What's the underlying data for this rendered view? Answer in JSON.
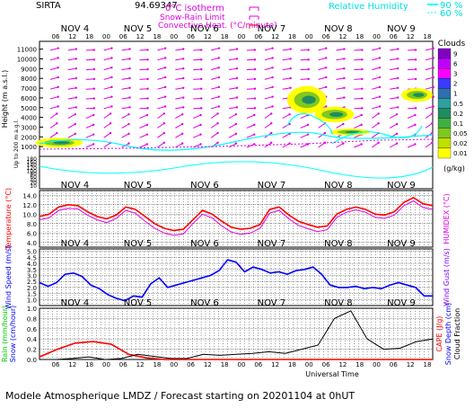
{
  "header": {
    "station": "SIRTA",
    "coords": "94.69347",
    "legend_isotherm": "0°C isotherm",
    "legend_snow_rain": "Snow-Rain Limit",
    "legend_convective": "Convective Heat. (°C/minute)",
    "legend_rh": "Relative Humidity",
    "rh_levels": [
      "90 %",
      "60 %"
    ],
    "footer": "Modele Atmospherique LMDZ / Forecast starting on 20201104 at 0hUT"
  },
  "colors": {
    "magenta": "#e000e0",
    "cyan": "#00ffff",
    "red": "#ff0000",
    "blue": "#0000ff",
    "green": "#00cc00",
    "lime": "#00ff00",
    "orange": "#ff6600",
    "grid": "#000000"
  },
  "chart_data": [
    {
      "type": "heatmap",
      "panel": "clouds",
      "ylabel": "Height (m a.s.l.)",
      "ylabel2": "Up to 200 m a.g.l.",
      "yticks_upper": [
        1000,
        2000,
        3000,
        4000,
        5000,
        6000,
        7000,
        8000,
        9000,
        10000,
        11000
      ],
      "yticks_lower": [
        10,
        20,
        40,
        60,
        80,
        100,
        120,
        140,
        160,
        180
      ],
      "days": [
        "NOV 4",
        "NOV 5",
        "NOV 6",
        "NOV 7",
        "NOV 8",
        "NOV 9"
      ],
      "hour_ticks": [
        "06",
        "12",
        "18",
        "00",
        "06",
        "12",
        "18",
        "00",
        "06",
        "12",
        "18",
        "00",
        "06",
        "12",
        "18",
        "00",
        "06",
        "12",
        "18",
        "00",
        "06",
        "12",
        "18"
      ],
      "colorbar_title": "Clouds",
      "colorbar_unit": "(g/kg)",
      "colorbar_ticks": [
        "9",
        "6",
        "3",
        "2",
        "1",
        "0.5",
        "0.2",
        "0.1",
        "0.05",
        "0.02",
        "0.01"
      ],
      "colorbar_colors": [
        "#8000c0",
        "#c000ff",
        "#ff00ff",
        "#3b3bff",
        "#2f6fb0",
        "#2fa0a0",
        "#208c60",
        "#40b040",
        "#80c820",
        "#c0e000",
        "#ffff00"
      ],
      "cloud_blobs": [
        {
          "t": 0.05,
          "z": 1400,
          "dt": 0.06,
          "dz": 500,
          "level": 0.5
        },
        {
          "t": 0.68,
          "z": 5800,
          "dt": 0.05,
          "dz": 1400,
          "level": 1
        },
        {
          "t": 0.75,
          "z": 4300,
          "dt": 0.05,
          "dz": 800,
          "level": 1
        },
        {
          "t": 0.79,
          "z": 2500,
          "dt": 0.05,
          "dz": 350,
          "level": 0.5
        },
        {
          "t": 0.96,
          "z": 6300,
          "dt": 0.04,
          "dz": 700,
          "level": 0.5
        }
      ]
    },
    {
      "type": "line",
      "panel": "temperature",
      "ylabel": "Temperature (°C)",
      "ylabel2": "HUMIDEX (°C)",
      "yticks": [
        4.0,
        6.0,
        8.0,
        10.0,
        12.0,
        14.0
      ],
      "ylim": [
        3,
        15
      ],
      "series": [
        {
          "name": "Temperature",
          "values": [
            9.5,
            10,
            11.5,
            12,
            11.8,
            10.5,
            9.5,
            9,
            9.8,
            11.5,
            11,
            9.5,
            8,
            7,
            6.5,
            6.8,
            8.8,
            10.8,
            10,
            8.5,
            7.2,
            6.8,
            7,
            7.8,
            11,
            11.5,
            9.8,
            8.5,
            7.8,
            7.2,
            7.5,
            10,
            11,
            11.5,
            11,
            10,
            9.8,
            10.5,
            12.5,
            13.5,
            12.2,
            11.8
          ]
        },
        {
          "name": "Humidex",
          "values": [
            8.8,
            9.2,
            10.8,
            11.2,
            11.1,
            9.8,
            8.8,
            8.2,
            9.1,
            10.8,
            10.2,
            8.5,
            7,
            6,
            5.5,
            5.8,
            8,
            10,
            9.2,
            7.5,
            6.2,
            5.7,
            6,
            7,
            10.2,
            10.8,
            9,
            7.6,
            6.9,
            6.3,
            6.7,
            9.3,
            10.4,
            10.9,
            10.4,
            9.3,
            9.1,
            9.8,
            11.8,
            12.8,
            11.4,
            11
          ]
        }
      ]
    },
    {
      "type": "line",
      "panel": "wind",
      "ylabel": "Wind Speed (m/s)",
      "ylabel2": "Wind Gust (m/s)",
      "yticks": [
        1.0,
        1.5,
        2.0,
        2.5,
        3.0,
        3.5,
        4.0,
        4.5,
        5.0
      ],
      "ylim": [
        0.5,
        5.2
      ],
      "series": [
        {
          "name": "Wind Speed",
          "values": [
            2.4,
            2.1,
            2.4,
            3.1,
            3.2,
            2.9,
            2.2,
            1.9,
            1.4,
            1.1,
            0.9,
            1.3,
            1.2,
            2.3,
            2.8,
            2.0,
            2.2,
            2.4,
            2.6,
            2.8,
            3.0,
            3.4,
            4.3,
            4.1,
            3.3,
            3.7,
            3.5,
            3.2,
            3.3,
            3.1,
            3.4,
            3.5,
            3.7,
            3.1,
            2.2,
            2.0,
            2.0,
            2.1,
            1.9,
            2.0,
            1.9,
            2.2,
            2.4,
            2.2,
            2.0,
            1.3,
            1.3
          ]
        }
      ]
    },
    {
      "type": "line",
      "panel": "rain",
      "ylabel": "Rain (mm/hour)",
      "ylabel2": "Snow (cm/hour)",
      "ylabel3": "CAPE (J/g)",
      "ylabel4": "Snow Depth (cm)",
      "ylabel5": "Cloud Fraction",
      "xlabel": "Universal Time",
      "yticks": [
        0.0,
        0.2,
        0.4,
        0.6,
        0.8,
        1.0
      ],
      "ylim": [
        0,
        1
      ],
      "series": [
        {
          "name": "Rain",
          "values": [
            0.05,
            0.2,
            0.32,
            0.35,
            0.3,
            0.1,
            0.03,
            0,
            0,
            0,
            0,
            0,
            0,
            0,
            0,
            0,
            0,
            0,
            0,
            0,
            0,
            0,
            0
          ]
        },
        {
          "name": "Cloud Fraction",
          "values": [
            0,
            0,
            0.02,
            0.05,
            0,
            0.02,
            0.1,
            0.06,
            0.02,
            0.02,
            0.1,
            0.08,
            0.1,
            0.12,
            0.15,
            0.12,
            0.2,
            0.28,
            0.8,
            0.95,
            0.4,
            0.2,
            0.22,
            0.35,
            0.4
          ]
        }
      ]
    }
  ]
}
